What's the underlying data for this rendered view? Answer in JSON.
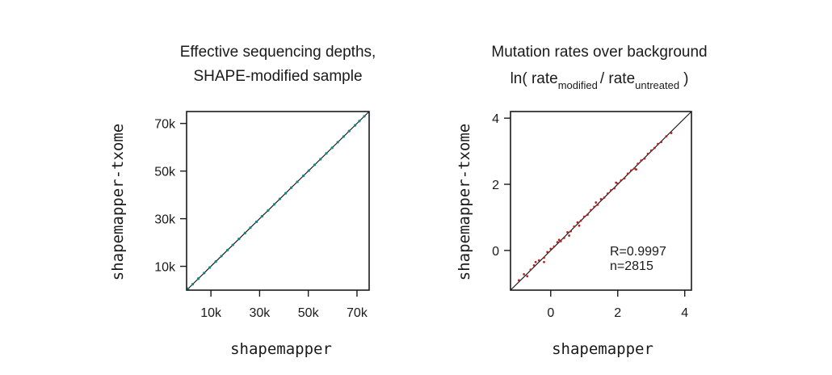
{
  "chart_data": [
    {
      "type": "scatter",
      "title_line1": "Effective sequencing depths,",
      "title_line2": "SHAPE-modified sample",
      "xlabel": "shapemapper",
      "ylabel": "shapemapper-txome",
      "xlim": [
        0,
        75000
      ],
      "ylim": [
        0,
        75000
      ],
      "xticks": [
        10000,
        30000,
        50000,
        70000
      ],
      "yticks": [
        10000,
        30000,
        50000,
        70000
      ],
      "tick_labels": [
        "10k",
        "30k",
        "50k",
        "70k"
      ],
      "point_color": "#138585",
      "identity_line": true,
      "points": [
        [
          600,
          620
        ],
        [
          2500,
          2480
        ],
        [
          4800,
          4830
        ],
        [
          7200,
          7180
        ],
        [
          9500,
          9520
        ],
        [
          12000,
          12010
        ],
        [
          14300,
          14280
        ],
        [
          16800,
          16820
        ],
        [
          19000,
          18990
        ],
        [
          21500,
          21520
        ],
        [
          24000,
          23980
        ],
        [
          26200,
          26230
        ],
        [
          28700,
          28690
        ],
        [
          31000,
          31010
        ],
        [
          33500,
          33480
        ],
        [
          36000,
          36020
        ],
        [
          38300,
          38310
        ],
        [
          40700,
          40680
        ],
        [
          43000,
          43020
        ],
        [
          45500,
          45490
        ],
        [
          48000,
          48010
        ],
        [
          50200,
          50190
        ],
        [
          52600,
          52630
        ],
        [
          55000,
          54980
        ],
        [
          57400,
          57420
        ],
        [
          59800,
          59790
        ],
        [
          62100,
          62120
        ],
        [
          64500,
          64490
        ],
        [
          66800,
          66810
        ],
        [
          69200,
          69180
        ],
        [
          71000,
          71020
        ],
        [
          73000,
          72990
        ]
      ]
    },
    {
      "type": "scatter",
      "title_line1": "Mutation rates over background",
      "title_ln": "ln( rate",
      "title_sub1": "modified",
      "title_mid": "/ rate",
      "title_sub2": "untreated",
      "title_end": ")",
      "xlabel": "shapemapper",
      "ylabel": "shapemapper-txome",
      "xlim": [
        -1.2,
        4.2
      ],
      "ylim": [
        -1.2,
        4.2
      ],
      "xticks": [
        0,
        2,
        4
      ],
      "yticks": [
        0,
        2,
        4
      ],
      "tick_labels": [
        "0",
        "2",
        "4"
      ],
      "point_color": "#b22222",
      "identity_line": true,
      "annotation_r": "R=0.9997",
      "annotation_n": "n=2815",
      "points": [
        [
          -0.95,
          -0.9
        ],
        [
          -0.8,
          -0.72
        ],
        [
          -0.6,
          -0.58
        ],
        [
          -0.5,
          -0.45
        ],
        [
          -0.35,
          -0.3
        ],
        [
          -0.2,
          -0.22
        ],
        [
          -0.1,
          -0.05
        ],
        [
          0.0,
          0.05
        ],
        [
          0.1,
          0.12
        ],
        [
          0.2,
          0.25
        ],
        [
          0.3,
          0.28
        ],
        [
          0.4,
          0.38
        ],
        [
          0.5,
          0.55
        ],
        [
          0.6,
          0.58
        ],
        [
          0.7,
          0.72
        ],
        [
          0.8,
          0.85
        ],
        [
          0.9,
          0.9
        ],
        [
          1.0,
          1.02
        ],
        [
          1.1,
          1.08
        ],
        [
          1.2,
          1.22
        ],
        [
          1.3,
          1.32
        ],
        [
          1.4,
          1.38
        ],
        [
          1.5,
          1.55
        ],
        [
          1.6,
          1.6
        ],
        [
          1.7,
          1.72
        ],
        [
          1.8,
          1.82
        ],
        [
          1.9,
          1.88
        ],
        [
          2.0,
          2.02
        ],
        [
          2.1,
          2.12
        ],
        [
          2.2,
          2.18
        ],
        [
          2.3,
          2.32
        ],
        [
          2.4,
          2.42
        ],
        [
          2.5,
          2.48
        ],
        [
          2.6,
          2.62
        ],
        [
          2.7,
          2.72
        ],
        [
          2.8,
          2.78
        ],
        [
          2.9,
          2.92
        ],
        [
          3.0,
          3.02
        ],
        [
          3.1,
          3.1
        ],
        [
          3.2,
          3.22
        ],
        [
          3.3,
          3.28
        ],
        [
          3.45,
          3.45
        ],
        [
          3.6,
          3.55
        ],
        [
          -0.45,
          -0.35
        ],
        [
          0.25,
          0.32
        ],
        [
          -0.2,
          -0.35
        ],
        [
          0.85,
          0.75
        ],
        [
          1.35,
          1.45
        ],
        [
          1.95,
          2.05
        ],
        [
          2.55,
          2.45
        ],
        [
          0.55,
          0.45
        ],
        [
          -0.7,
          -0.78
        ]
      ]
    }
  ]
}
